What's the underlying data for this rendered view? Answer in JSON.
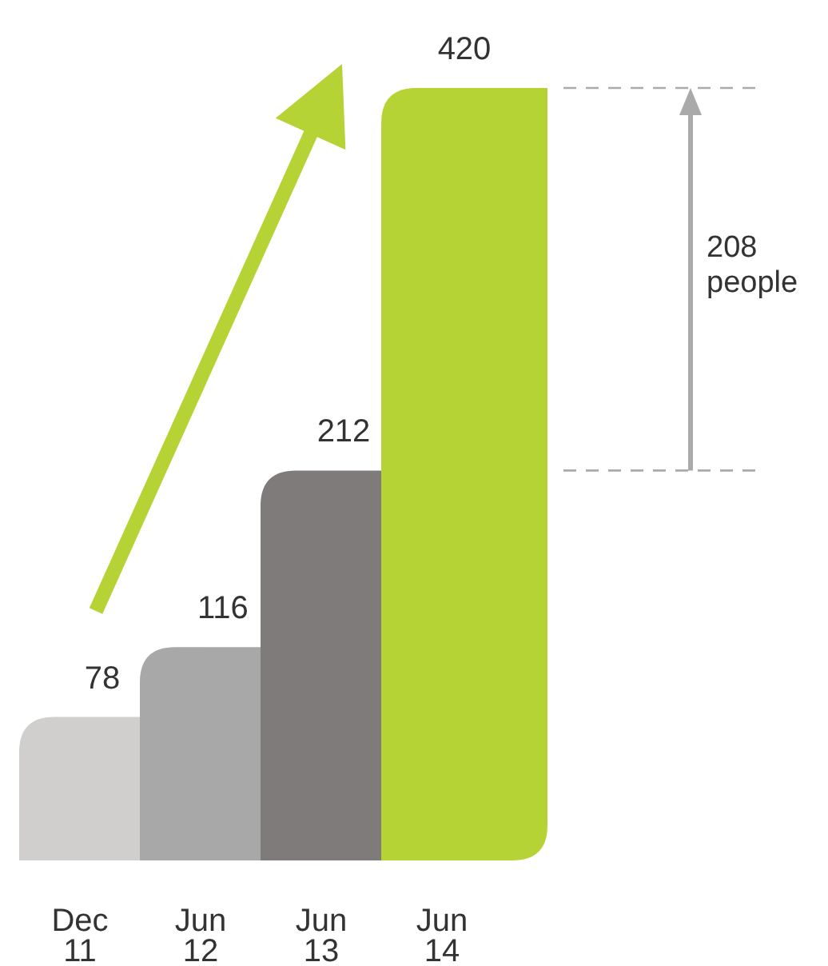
{
  "chart_data": {
    "type": "bar",
    "categories": [
      "Dec 11",
      "Jun 12",
      "Jun 13",
      "Jun 14"
    ],
    "values": [
      78,
      116,
      212,
      420
    ],
    "colors": [
      "#d0cfcd",
      "#a9a8a8",
      "#7f7b7a",
      "#b5d334"
    ],
    "data_labels": true,
    "annotations": [
      "208 people"
    ]
  }
}
